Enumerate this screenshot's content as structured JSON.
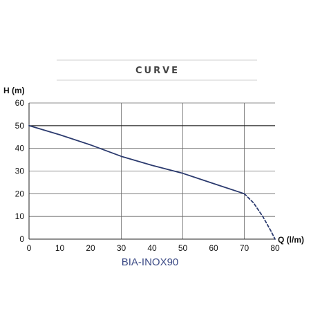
{
  "heading": "CURVE",
  "chart_data": {
    "type": "line",
    "title": "",
    "xlabel": "Q (l/m)",
    "ylabel": "H (m)",
    "xlim": [
      0,
      80
    ],
    "ylim": [
      0,
      60
    ],
    "x_ticks": [
      "0",
      "10",
      "20",
      "30",
      "40",
      "50",
      "60",
      "70",
      "80"
    ],
    "y_ticks": [
      "0",
      "10",
      "20",
      "30",
      "40",
      "50",
      "60"
    ],
    "grid": true,
    "reference_line": {
      "y": 50
    },
    "series": [
      {
        "name": "BIA-INOX90",
        "style": "solid",
        "x": [
          0,
          10,
          20,
          30,
          40,
          50,
          60,
          70
        ],
        "y": [
          50,
          46,
          41.5,
          36.5,
          32.5,
          29,
          24.5,
          20
        ]
      },
      {
        "style": "dashed",
        "x": [
          70,
          73,
          76,
          78.5,
          80
        ],
        "y": [
          20,
          16,
          10,
          4,
          0
        ]
      }
    ],
    "colors": {
      "line": "#2b3a6e",
      "grid": "#666666",
      "axis": "#222222",
      "label": "#3b4a85"
    }
  }
}
